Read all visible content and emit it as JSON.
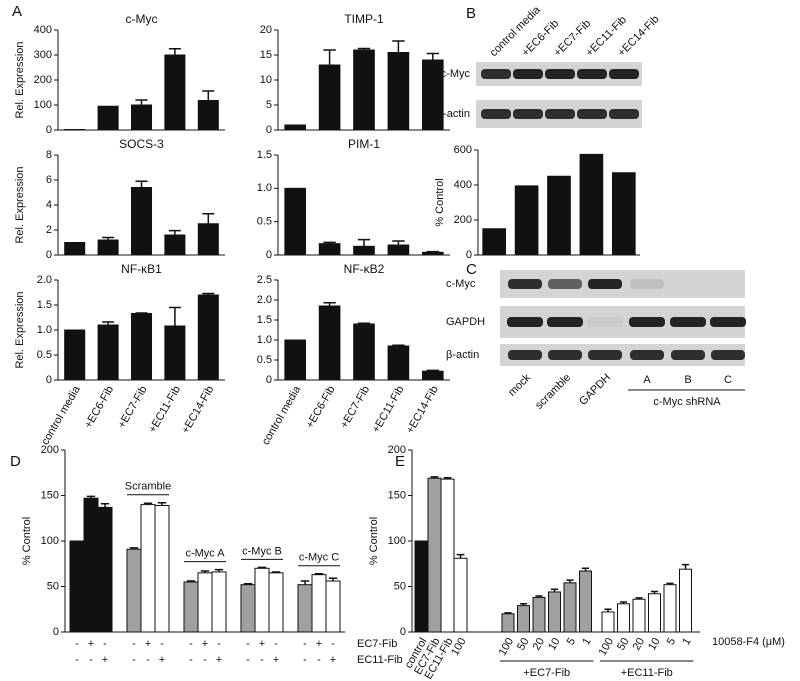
{
  "panel_labels": [
    "A",
    "B",
    "C",
    "D",
    "E"
  ],
  "blots": {
    "B": {
      "lanes": [
        "control media",
        "+EC6-Fib",
        "+EC7-Fib",
        "+EC11-Fib",
        "+EC14-Fib"
      ],
      "rows": [
        "c-Myc",
        "β-actin"
      ]
    },
    "C": {
      "lanes": [
        "mock",
        "scramble",
        "GAPDH",
        "A",
        "B",
        "C"
      ],
      "rows": [
        "c-Myc",
        "GAPDH",
        "β-actin"
      ],
      "group_label": "c-Myc shRNA"
    }
  },
  "chart_data": [
    {
      "type": "bar",
      "title": "c-Myc",
      "ylabel": "Rel. Expression",
      "color": "#111111",
      "categories": [
        null,
        null,
        null,
        null,
        null
      ],
      "values": [
        2,
        95,
        100,
        300,
        118
      ],
      "errors": [
        null,
        null,
        20,
        25,
        38
      ],
      "ylim": [
        0,
        400
      ],
      "yticks": [
        0,
        100,
        200,
        300,
        400
      ]
    },
    {
      "type": "bar",
      "title": "TIMP-1",
      "color": "#111111",
      "categories": [
        null,
        null,
        null,
        null,
        null
      ],
      "values": [
        1,
        13,
        16,
        15.5,
        14
      ],
      "errors": [
        null,
        3,
        0.3,
        2.3,
        1.3
      ],
      "ylim": [
        0,
        20
      ],
      "yticks": [
        0,
        5,
        10,
        15,
        20
      ]
    },
    {
      "type": "bar",
      "title": "SOCS-3",
      "ylabel": "Rel. Expression",
      "color": "#111111",
      "categories": [
        null,
        null,
        null,
        null,
        null
      ],
      "values": [
        1,
        1.2,
        5.4,
        1.6,
        2.5
      ],
      "errors": [
        null,
        0.2,
        0.5,
        0.35,
        0.8
      ],
      "ylim": [
        0,
        8
      ],
      "yticks": [
        0,
        2,
        4,
        6,
        8
      ]
    },
    {
      "type": "bar",
      "title": "PIM-1",
      "color": "#111111",
      "categories": [
        null,
        null,
        null,
        null,
        null
      ],
      "values": [
        1,
        0.17,
        0.13,
        0.15,
        0.04
      ],
      "errors": [
        null,
        0.02,
        0.1,
        0.06,
        0.01
      ],
      "ylim": [
        0,
        1.5
      ],
      "yticks": [
        0,
        0.5,
        {
          "value": 1,
          "label": "1.0"
        },
        1.5
      ]
    },
    {
      "type": "bar",
      "title": "NF-κB1",
      "ylabel": "Rel. Expression",
      "color": "#111111",
      "categories": [
        "control media",
        "+EC6-Fib",
        "+EC7-Fib",
        "+EC11-Fib",
        "+EC14-Fib"
      ],
      "values": [
        1,
        1.1,
        1.33,
        1.08,
        1.7
      ],
      "errors": [
        null,
        0.06,
        0.01,
        0.37,
        0.03
      ],
      "ylim": [
        0,
        2
      ],
      "yticks": [
        0,
        0.5,
        {
          "value": 1,
          "label": "1.0"
        },
        1.5,
        {
          "value": 2,
          "label": "2.0"
        }
      ]
    },
    {
      "type": "bar",
      "title": "NF-κB2",
      "color": "#111111",
      "categories": [
        "control media",
        "+EC6-Fib",
        "+EC7-Fib",
        "+EC11-Fib",
        "+EC14-Fib"
      ],
      "values": [
        1,
        1.85,
        1.4,
        0.85,
        0.22
      ],
      "errors": [
        null,
        0.08,
        0.02,
        0.02,
        0.02
      ],
      "ylim": [
        0,
        2.5
      ],
      "yticks": [
        0,
        0.5,
        {
          "value": 1,
          "label": "1.0"
        },
        1.5,
        {
          "value": 2,
          "label": "2.0"
        },
        2.5
      ]
    },
    {
      "type": "bar",
      "ylabel": "% Control",
      "color": "#111111",
      "categories": [
        null,
        null,
        null,
        null,
        null
      ],
      "values": [
        150,
        395,
        450,
        575,
        470
      ],
      "ylim": [
        0,
        600
      ],
      "yticks": [
        0,
        200,
        400,
        600
      ]
    },
    {
      "type": "bar",
      "ylabel": "% Control",
      "categories": [
        null,
        null,
        null,
        null,
        null,
        null,
        null,
        null,
        null,
        null,
        null,
        null,
        null,
        null,
        null
      ],
      "values": [
        100,
        147,
        137,
        91,
        140,
        139,
        55,
        65,
        66,
        52,
        70,
        65,
        52,
        63,
        56
      ],
      "errors": [
        null,
        2,
        4,
        1.5,
        1.5,
        3,
        1,
        2,
        2.5,
        1,
        1,
        1,
        4,
        1,
        3
      ],
      "colors": [
        "#111111",
        "#111111",
        "#111111",
        "#a0a0a0",
        "#ffffff",
        "#ffffff",
        "#a0a0a0",
        "#ffffff",
        "#ffffff",
        "#a0a0a0",
        "#ffffff",
        "#ffffff",
        "#a0a0a0",
        "#ffffff",
        "#ffffff"
      ],
      "ylim": [
        0,
        200
      ],
      "yticks": [
        0,
        50,
        100,
        150,
        200
      ],
      "group_labels": [
        "Scramble",
        "c-Myc A",
        "c-Myc B",
        "c-Myc C"
      ],
      "sign_rows": [
        {
          "name": "EC7-Fib",
          "signs": [
            "-",
            "+",
            "-",
            "-",
            "+",
            "-",
            "-",
            "+",
            "-",
            "-",
            "+",
            "-",
            "-",
            "+",
            "-"
          ]
        },
        {
          "name": "EC11-Fib",
          "signs": [
            "-",
            "-",
            "+",
            "-",
            "-",
            "+",
            "-",
            "-",
            "+",
            "-",
            "-",
            "+",
            "-",
            "-",
            "+"
          ]
        }
      ]
    },
    {
      "type": "bar",
      "ylabel": "% Control",
      "categories": [
        "control",
        "EC7-Fib",
        "EC11-Fib",
        "100",
        "100",
        "50",
        "20",
        "10",
        "5",
        "1",
        "100",
        "50",
        "20",
        "10",
        "5",
        "1"
      ],
      "values": [
        100,
        169,
        168,
        81,
        20,
        29,
        38,
        44,
        54,
        67,
        22,
        31,
        36,
        42,
        52,
        69
      ],
      "errors": [
        null,
        1.5,
        1.5,
        4,
        1,
        2,
        1.5,
        3,
        3,
        3,
        3,
        2,
        1.5,
        2.5,
        1.5,
        5
      ],
      "colors": [
        "#111111",
        "#a0a0a0",
        "#ffffff",
        "#ffffff",
        "#a0a0a0",
        "#a0a0a0",
        "#a0a0a0",
        "#a0a0a0",
        "#a0a0a0",
        "#a0a0a0",
        "#ffffff",
        "#ffffff",
        "#ffffff",
        "#ffffff",
        "#ffffff",
        "#ffffff"
      ],
      "ylim": [
        0,
        200
      ],
      "yticks": [
        0,
        50,
        100,
        150,
        200
      ],
      "group_labels": [
        "+EC7-Fib",
        "+EC11-Fib"
      ],
      "x_label": "10058-F4 (μM)"
    }
  ]
}
